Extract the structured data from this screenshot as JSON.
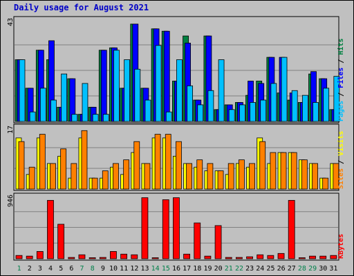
{
  "chart_data": {
    "title": "Daily usage for August 2021",
    "days": [
      "1",
      "2",
      "3",
      "4",
      "5",
      "6",
      "7",
      "8",
      "9",
      "10",
      "11",
      "12",
      "13",
      "14",
      "15",
      "16",
      "17",
      "18",
      "19",
      "20",
      "21",
      "22",
      "23",
      "24",
      "25",
      "26",
      "27",
      "28",
      "29",
      "30",
      "31"
    ],
    "weekend_days": [
      "1",
      "7",
      "8",
      "14",
      "15",
      "21",
      "22",
      "28",
      "29"
    ],
    "panels": [
      {
        "type": "bar",
        "max_label": "43",
        "ylim": [
          0,
          43
        ],
        "side_label": [
          "Pages",
          "Files",
          "Hits"
        ],
        "series": [
          {
            "name": "Hits",
            "color": "#008040",
            "values": [
              26,
              14,
              30,
              26,
              6,
              18,
              3,
              6,
              30,
              31,
              14,
              41,
              14,
              39,
              38,
              17,
              36,
              9,
              36,
              5,
              7,
              8,
              11,
              17,
              27,
              12,
              9,
              8,
              20,
              18,
              5
            ]
          },
          {
            "name": "Files",
            "color": "#0000ff",
            "values": [
              26,
              14,
              30,
              34,
              6,
              18,
              3,
              6,
              30,
              31,
              14,
              41,
              14,
              39,
              38,
              17,
              33,
              9,
              36,
              5,
              7,
              8,
              17,
              16,
              27,
              27,
              12,
              8,
              21,
              18,
              5
            ]
          },
          {
            "name": "Pages",
            "color": "#00c0ff",
            "values": [
              26,
              4,
              14,
              9,
              20,
              3,
              16,
              3,
              3,
              30,
              26,
              22,
              9,
              32,
              4,
              26,
              15,
              7,
              13,
              26,
              5,
              7,
              8,
              9,
              16,
              27,
              13,
              11,
              8,
              14,
              19
            ]
          }
        ]
      },
      {
        "type": "bar",
        "max_label": "17",
        "ylim": [
          0,
          17
        ],
        "side_label": [
          "Sites",
          "Visits"
        ],
        "series": [
          {
            "name": "Visits",
            "color": "#ffff00",
            "values": [
              14,
              4,
              14,
              7,
              9,
              3,
              14,
              3,
              3,
              6,
              4,
              10,
              7,
              14,
              14,
              9,
              7,
              6,
              5,
              5,
              4,
              7,
              6,
              14,
              7,
              10,
              10,
              8,
              7,
              3,
              7
            ]
          },
          {
            "name": "Sites",
            "color": "#ff8000",
            "values": [
              13,
              6,
              15,
              7,
              11,
              7,
              16,
              3,
              5,
              7,
              8,
              13,
              7,
              15,
              15,
              13,
              7,
              8,
              7,
              5,
              7,
              8,
              7,
              13,
              10,
              10,
              10,
              8,
              7,
              3,
              7
            ]
          }
        ]
      },
      {
        "type": "bar",
        "max_label": "946",
        "ylim": [
          0,
          946
        ],
        "side_label": [
          "KBytes"
        ],
        "series": [
          {
            "name": "KBytes",
            "color": "#ff0000",
            "values": [
              50,
              40,
              110,
              880,
              520,
              20,
              60,
              10,
              20,
              110,
              70,
              60,
              920,
              10,
              890,
              920,
              70,
              540,
              40,
              500,
              20,
              20,
              30,
              60,
              50,
              80,
              880,
              10,
              40,
              40,
              50
            ]
          }
        ]
      }
    ]
  }
}
